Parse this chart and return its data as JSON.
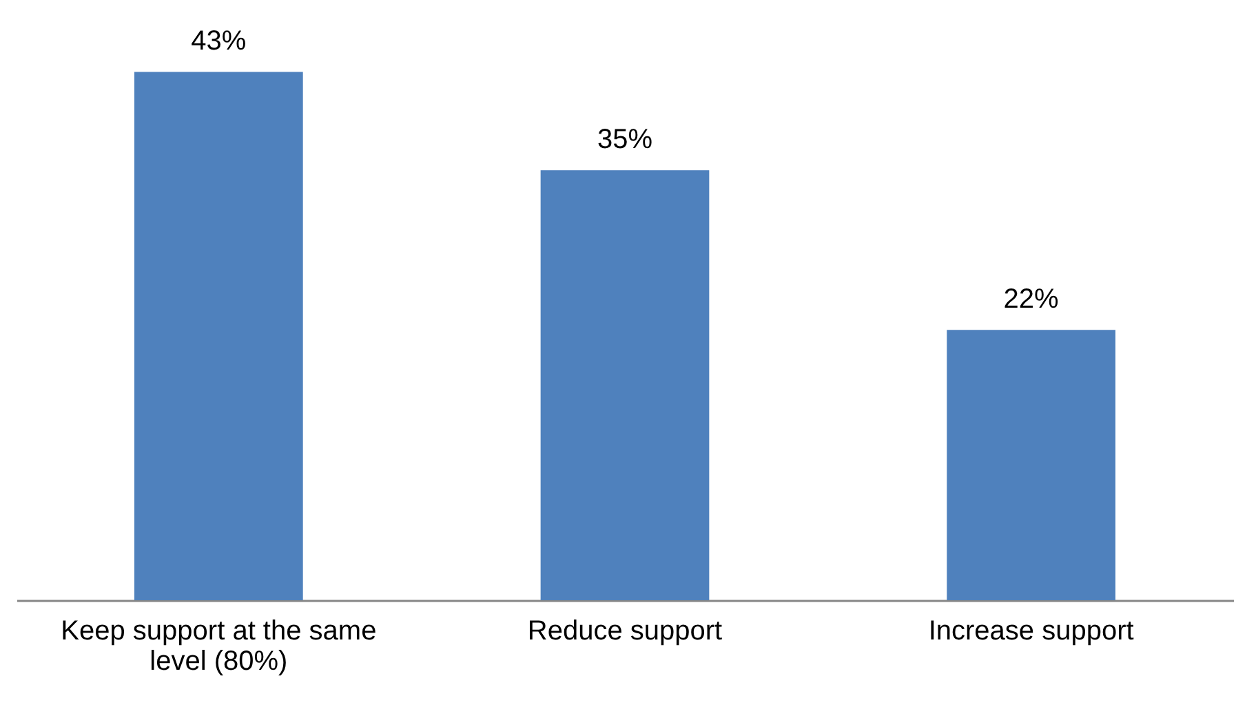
{
  "chart_data": {
    "type": "bar",
    "categories": [
      "Keep support at the same level (80%)",
      "Reduce support",
      "Increase support"
    ],
    "values": [
      43,
      35,
      22
    ],
    "value_labels": [
      "43%",
      "35%",
      "22%"
    ],
    "color": "#4f81bd"
  }
}
